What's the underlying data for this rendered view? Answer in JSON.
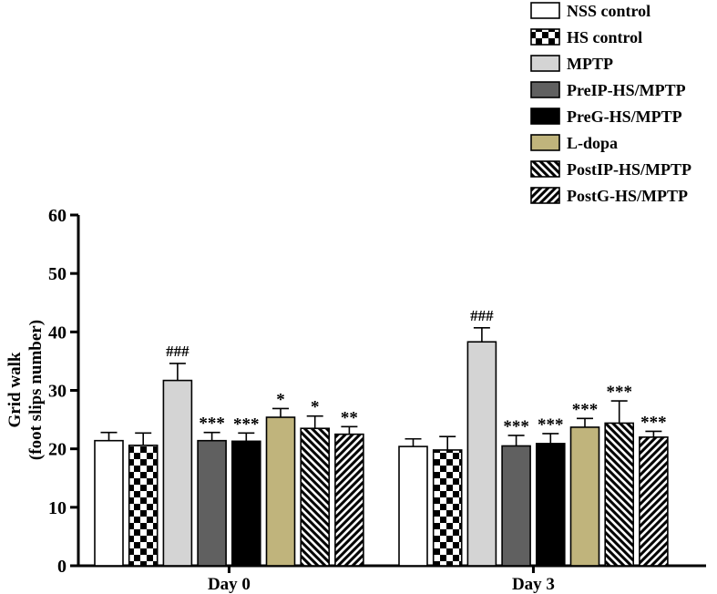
{
  "chart_data": {
    "type": "bar",
    "title": "",
    "ylabel_lines": [
      "Grid walk",
      "(foot slips number)"
    ],
    "xlabel": "",
    "categories": [
      "Day 0",
      "Day 3"
    ],
    "ylim": [
      0,
      60
    ],
    "yticks": [
      0,
      10,
      20,
      30,
      40,
      50,
      60
    ],
    "grid": false,
    "legend_position": "top-right",
    "series": [
      {
        "name": "NSS control",
        "fill": "#ffffff",
        "pattern": "none",
        "values": [
          21.4,
          20.4
        ],
        "errors": [
          1.4,
          1.3
        ],
        "annotations": [
          "",
          ""
        ]
      },
      {
        "name": "HS control",
        "fill": "#ffffff",
        "pattern": "checker",
        "values": [
          20.6,
          19.8
        ],
        "errors": [
          2.1,
          2.3
        ],
        "annotations": [
          "",
          ""
        ]
      },
      {
        "name": "MPTP",
        "fill": "#d4d4d4",
        "pattern": "none",
        "values": [
          31.7,
          38.3
        ],
        "errors": [
          2.9,
          2.4
        ],
        "annotations": [
          "###",
          "###"
        ]
      },
      {
        "name": "PreIP-HS/MPTP",
        "fill": "#606060",
        "pattern": "none",
        "values": [
          21.4,
          20.5
        ],
        "errors": [
          1.4,
          1.8
        ],
        "annotations": [
          "***",
          "***"
        ]
      },
      {
        "name": "PreG-HS/MPTP",
        "fill": "#000000",
        "pattern": "none",
        "values": [
          21.3,
          20.9
        ],
        "errors": [
          1.4,
          1.7
        ],
        "annotations": [
          "***",
          "***"
        ]
      },
      {
        "name": "L-dopa",
        "fill": "#c0b47c",
        "pattern": "none",
        "values": [
          25.4,
          23.7
        ],
        "errors": [
          1.5,
          1.5
        ],
        "annotations": [
          "*",
          "***"
        ]
      },
      {
        "name": "PostIP-HS/MPTP",
        "fill": "#ffffff",
        "pattern": "backdiag",
        "values": [
          23.5,
          24.4
        ],
        "errors": [
          2.1,
          3.8
        ],
        "annotations": [
          "*",
          "***"
        ]
      },
      {
        "name": "PostG-HS/MPTP",
        "fill": "#ffffff",
        "pattern": "fwddiag",
        "values": [
          22.5,
          22.0
        ],
        "errors": [
          1.3,
          1.0
        ],
        "annotations": [
          "**",
          "***"
        ]
      }
    ]
  }
}
